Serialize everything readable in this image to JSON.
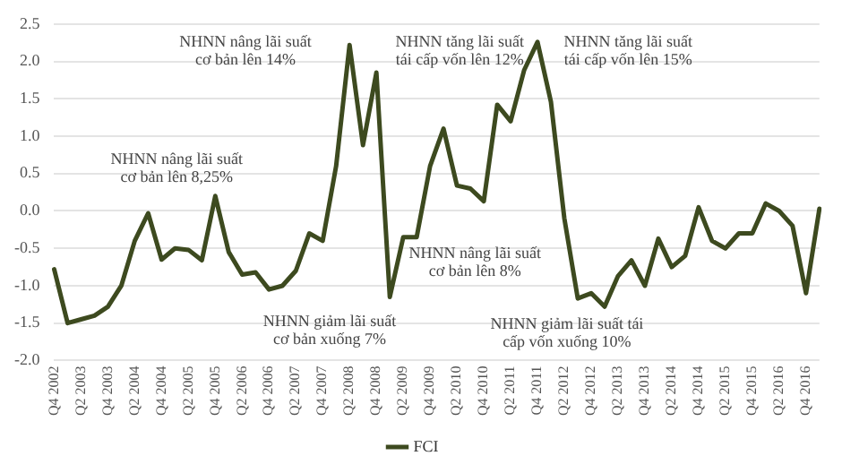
{
  "chart_data": {
    "type": "line",
    "categories": [
      "Q4 2002",
      null,
      "Q2 2003",
      null,
      "Q4 2003",
      null,
      "Q2 2004",
      null,
      "Q4 2004",
      null,
      "Q2 2005",
      null,
      "Q4 2005",
      null,
      "Q2 2006",
      null,
      "Q4 2006",
      null,
      "Q2 2007",
      null,
      "Q4 2007",
      null,
      "Q2 2008",
      null,
      "Q4 2008",
      null,
      "Q2 2009",
      null,
      "Q4 2009",
      null,
      "Q2 2010",
      null,
      "Q4 2010",
      null,
      "Q2 2011",
      null,
      "Q4 2011",
      null,
      "Q2 2012",
      null,
      "Q4 2012",
      null,
      "Q2 2013",
      null,
      "Q4 2013",
      null,
      "Q2 2014",
      null,
      "Q4 2014",
      null,
      "Q2 2015",
      null,
      "Q4 2015",
      null,
      "Q2 2016",
      null,
      "Q4 2016",
      null
    ],
    "series": [
      {
        "name": "FCI",
        "color": "#3d4a1f",
        "values": [
          -0.78,
          -1.5,
          -1.45,
          -1.4,
          -1.28,
          -1.0,
          -0.4,
          -0.03,
          -0.65,
          -0.5,
          -0.52,
          -0.66,
          0.2,
          -0.55,
          -0.85,
          -0.82,
          -1.05,
          -1.0,
          -0.8,
          -0.3,
          -0.4,
          0.6,
          2.22,
          0.88,
          1.85,
          -1.15,
          -0.35,
          -0.35,
          0.6,
          1.1,
          0.34,
          0.3,
          0.13,
          1.42,
          1.2,
          1.88,
          2.26,
          1.46,
          -0.1,
          -1.17,
          -1.1,
          -1.28,
          -0.87,
          -0.66,
          -1.0,
          -0.37,
          -0.75,
          -0.6,
          0.05,
          -0.4,
          -0.5,
          -0.3,
          -0.3,
          0.1,
          0.0,
          -0.2,
          -1.1,
          0.03
        ]
      }
    ],
    "ylim": [
      -2.0,
      2.5
    ],
    "yticks": [
      {
        "value": -2.0,
        "label": "-2.0"
      },
      {
        "value": -1.5,
        "label": "-1.5"
      },
      {
        "value": -1.0,
        "label": "-1.0"
      },
      {
        "value": -0.5,
        "label": "-0.5"
      },
      {
        "value": 0,
        "label": "0.0"
      },
      {
        "value": 0.5,
        "label": "0.5"
      },
      {
        "value": 1.0,
        "label": "1.0"
      },
      {
        "value": 1.5,
        "label": "1.5"
      },
      {
        "value": 2.0,
        "label": "2.0"
      },
      {
        "value": 2.5,
        "label": "2.5"
      }
    ],
    "grid": "y",
    "legend": "bottom",
    "marker": "none",
    "line_style": "solid",
    "annotations": [
      "NHNN nâng lãi suất\ncơ bản lên 8,25%",
      "NHNN nâng lãi suất\ncơ bản lên 14%",
      "NHNN tăng lãi suất\ntái cấp vốn lên 12%",
      "NHNN tăng lãi suất\ntái cấp vốn lên 15%",
      "NHNN nâng lãi suất\ncơ bản lên 8%",
      "NHNN giảm lãi suất\ncơ bản xuống 7%",
      "NHNN giảm lãi suất tái\ncấp vốn xuống 10%"
    ]
  }
}
